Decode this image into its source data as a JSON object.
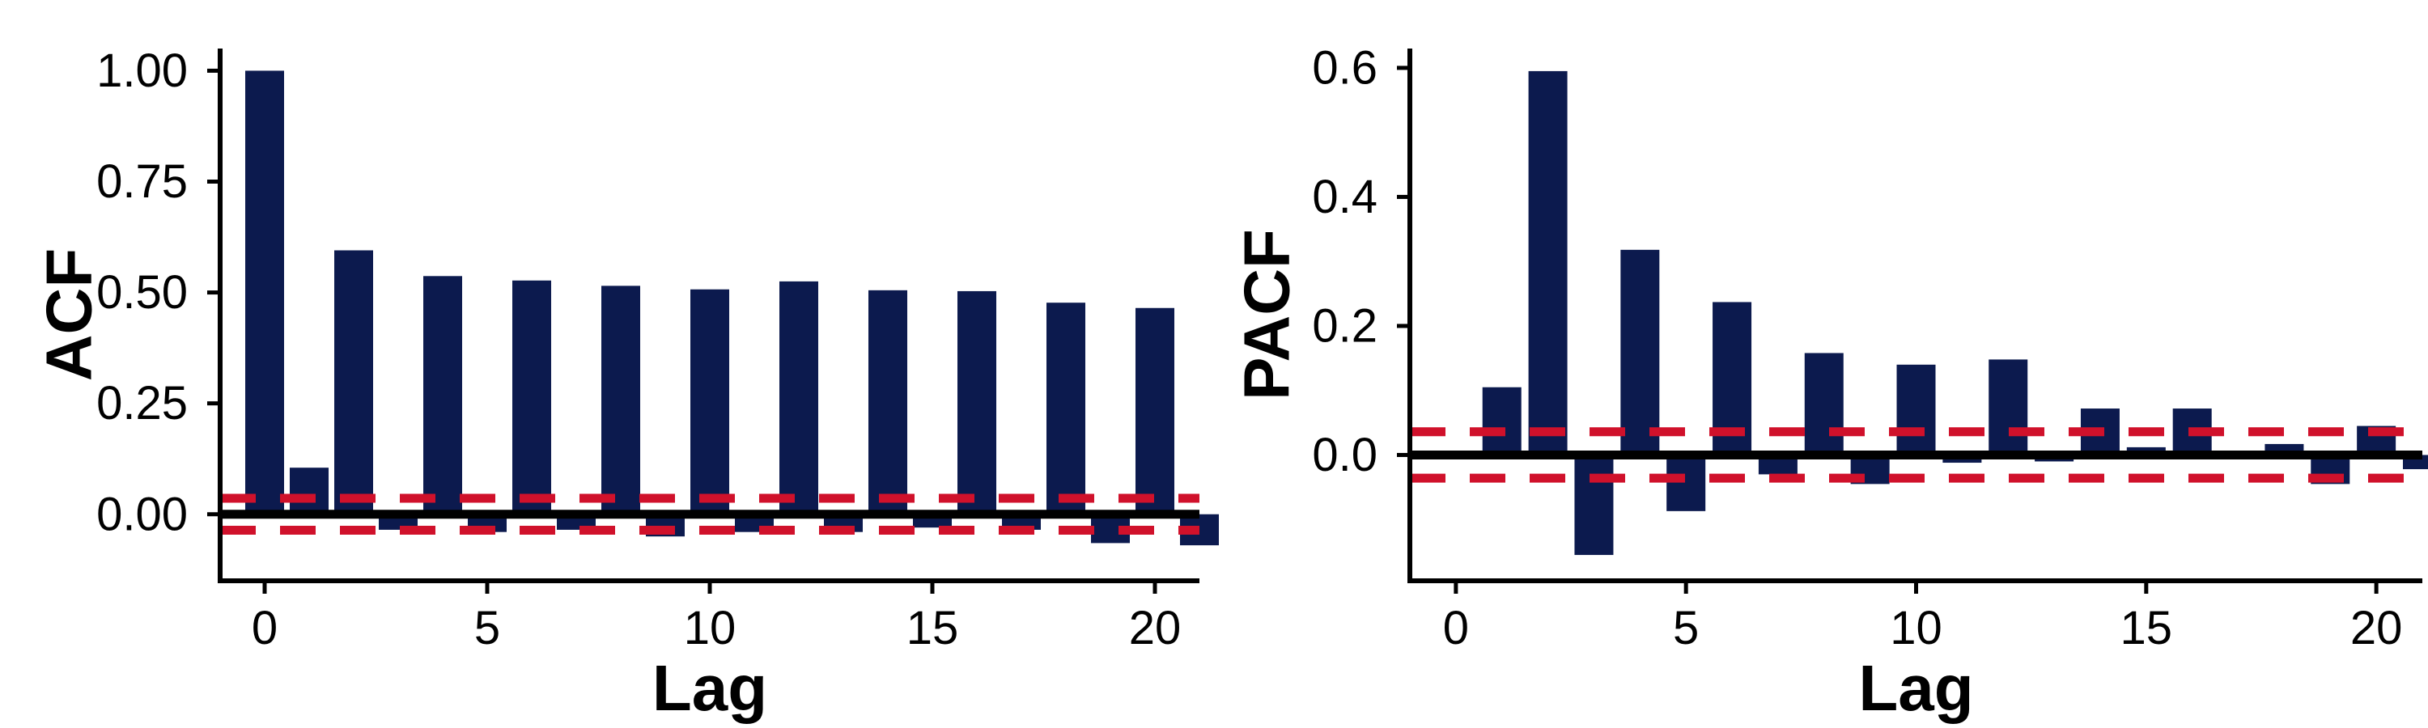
{
  "colors": {
    "bar": "#0c1a4e",
    "confidence": "#d0112b",
    "axis": "#000000",
    "zero_line": "#000000"
  },
  "chart_data": [
    {
      "type": "bar",
      "xlabel": "Lag",
      "ylabel": "ACF",
      "xlim": [
        -1,
        21
      ],
      "ylim": [
        -0.15,
        1.05
      ],
      "xticks": [
        0,
        5,
        10,
        15,
        20
      ],
      "yticks": [
        0.0,
        0.25,
        0.5,
        0.75,
        1.0
      ],
      "ytick_labels": [
        "0.00",
        "0.25",
        "0.50",
        "0.75",
        "1.00"
      ],
      "confidence_bounds": [
        0.036,
        -0.036
      ],
      "grid": false,
      "lags": [
        0,
        1,
        2,
        3,
        4,
        5,
        6,
        7,
        8,
        9,
        10,
        11,
        12,
        13,
        14,
        15,
        16,
        17,
        18,
        19,
        20,
        21
      ],
      "values": [
        1.0,
        0.105,
        0.595,
        -0.035,
        0.537,
        -0.04,
        0.527,
        -0.035,
        0.515,
        -0.05,
        0.507,
        -0.04,
        0.525,
        -0.04,
        0.505,
        -0.03,
        0.503,
        -0.035,
        0.477,
        -0.065,
        0.465,
        -0.07
      ]
    },
    {
      "type": "bar",
      "xlabel": "Lag",
      "ylabel": "PACF",
      "xlim": [
        -1,
        21
      ],
      "ylim": [
        -0.195,
        0.63
      ],
      "xticks": [
        0,
        5,
        10,
        15,
        20
      ],
      "yticks": [
        0.0,
        0.2,
        0.4,
        0.6
      ],
      "ytick_labels": [
        "0.0",
        "0.2",
        "0.4",
        "0.6"
      ],
      "confidence_bounds": [
        0.036,
        -0.036
      ],
      "grid": false,
      "lags": [
        1,
        2,
        3,
        4,
        5,
        6,
        7,
        8,
        9,
        10,
        11,
        12,
        13,
        14,
        15,
        16,
        17,
        18,
        19,
        20,
        21
      ],
      "values": [
        0.105,
        0.595,
        -0.155,
        0.318,
        -0.087,
        0.237,
        -0.03,
        0.158,
        -0.045,
        0.14,
        -0.012,
        0.148,
        -0.01,
        0.072,
        0.012,
        0.072,
        -0.003,
        0.017,
        -0.045,
        0.045,
        -0.022
      ]
    }
  ]
}
